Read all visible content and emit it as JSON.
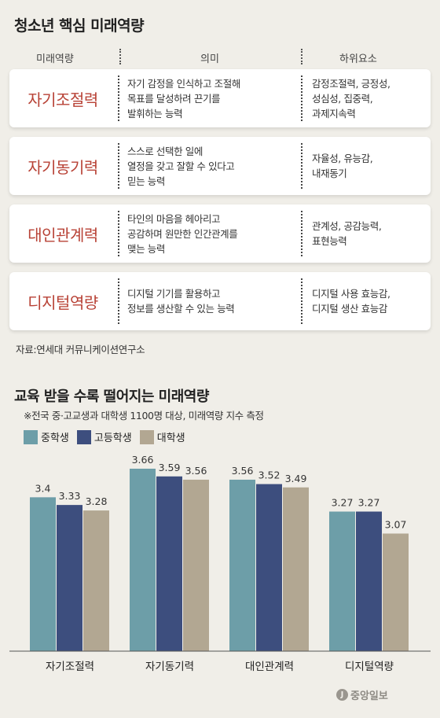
{
  "table": {
    "title": "청소년 핵심 미래역량",
    "headers": [
      "미래역량",
      "의미",
      "하위요소"
    ],
    "rows": [
      {
        "name": "자기조절력",
        "desc": [
          "자기 감정을 인식하고 조절해",
          "목표를 달성하려 끈기를",
          "발휘하는 능력"
        ],
        "sub": [
          "감정조절력, 긍정성,",
          "성심성, 집중력,",
          "과제지속력"
        ]
      },
      {
        "name": "자기동기력",
        "desc": [
          "스스로 선택한 일에",
          "열정을 갖고 잘할 수 있다고",
          "믿는 능력"
        ],
        "sub": [
          "자율성, 유능감,",
          "내재동기"
        ]
      },
      {
        "name": "대인관계력",
        "desc": [
          "타인의 마음을 헤아리고",
          "공감하며 원만한 인간관계를",
          "맺는 능력"
        ],
        "sub": [
          "관계성, 공감능력,",
          "표현능력"
        ]
      },
      {
        "name": "디지털역량",
        "desc": [
          "디지털 기기를 활용하고",
          "정보를 생산할 수 있는 능력"
        ],
        "sub": [
          "디지털 사용 효능감,",
          "디지털 생산 효능감"
        ]
      }
    ],
    "source": "자료:연세대 커뮤니케이션연구소"
  },
  "chart_title": "교육 받을 수록 떨어지는 미래역량",
  "chart_subtitle": "※전국 중·고교생과 대학생 1100명 대상, 미래역량 지수 측정",
  "logo_text": "중앙일보",
  "chart_data": {
    "type": "bar",
    "title": "교육 받을 수록 떨어지는 미래역량",
    "categories": [
      "자기조절력",
      "자기동기력",
      "대인관계력",
      "디지털역량"
    ],
    "series": [
      {
        "name": "중학생",
        "color": "#6d9ea8",
        "values": [
          3.4,
          3.66,
          3.56,
          3.27
        ]
      },
      {
        "name": "고등학생",
        "color": "#3d4e7e",
        "values": [
          3.33,
          3.59,
          3.52,
          3.27
        ]
      },
      {
        "name": "대학생",
        "color": "#b2a792",
        "values": [
          3.28,
          3.56,
          3.49,
          3.07
        ]
      }
    ],
    "value_labels": [
      [
        "3.4",
        "3.66",
        "3.56",
        "3.27"
      ],
      [
        "3.33",
        "3.59",
        "3.52",
        "3.27"
      ],
      [
        "3.28",
        "3.56",
        "3.49",
        "3.07"
      ]
    ],
    "legend": "top-left",
    "grid": false
  }
}
